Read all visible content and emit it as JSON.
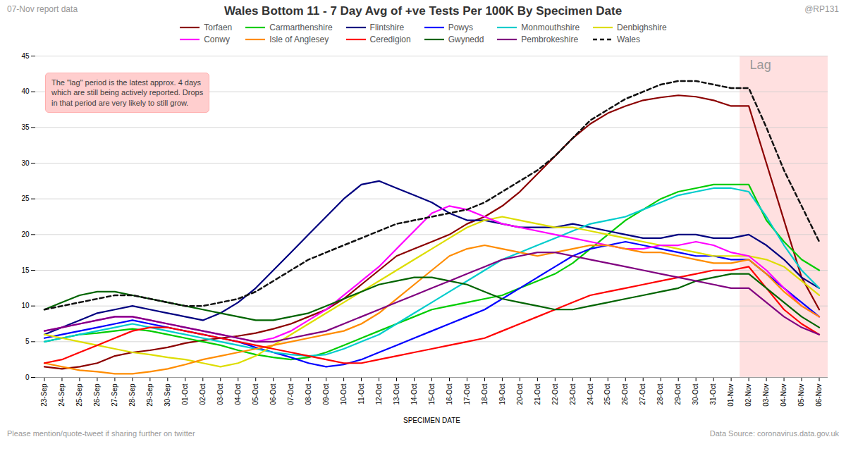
{
  "chart_data": {
    "type": "line",
    "title": "Wales Bottom 11 - 7 Day Avg of +ve Tests Per 100K By Specimen Date",
    "subtitle": "07-Nov report data",
    "credit": "@RP131",
    "caption": [
      "Please mention/quote-tweet if sharing further on twitter",
      "Data Source: coronavirus.data.gov.uk"
    ],
    "xlabel": "SPECIMEN DATE",
    "ylim": [
      0,
      45
    ],
    "yticks": [
      0,
      5,
      10,
      15,
      20,
      25,
      30,
      35,
      40,
      45
    ],
    "grid": true,
    "legend": "top",
    "highlight": {
      "from": "02-Nov",
      "to": "06-Nov",
      "label": "Lag"
    },
    "annotations": [
      "The \"lag\" period is the latest approx. 4 days\nwhich are still being actively reported. Drops\nin that period are very likely to still grow."
    ],
    "categories": [
      "23-Sep",
      "24-Sep",
      "25-Sep",
      "26-Sep",
      "27-Sep",
      "28-Sep",
      "29-Sep",
      "30-Sep",
      "01-Oct",
      "02-Oct",
      "03-Oct",
      "04-Oct",
      "05-Oct",
      "06-Oct",
      "07-Oct",
      "08-Oct",
      "09-Oct",
      "10-Oct",
      "11-Oct",
      "12-Oct",
      "13-Oct",
      "14-Oct",
      "15-Oct",
      "16-Oct",
      "17-Oct",
      "18-Oct",
      "19-Oct",
      "20-Oct",
      "21-Oct",
      "22-Oct",
      "23-Oct",
      "24-Oct",
      "25-Oct",
      "26-Oct",
      "27-Oct",
      "28-Oct",
      "29-Oct",
      "30-Oct",
      "31-Oct",
      "01-Nov",
      "02-Nov",
      "03-Nov",
      "04-Nov",
      "05-Nov",
      "06-Nov"
    ],
    "series": [
      {
        "name": "Torfaen",
        "color": "#8B0000",
        "line_style": "solid",
        "values": [
          1.5,
          1.2,
          1.5,
          2.0,
          3.0,
          3.5,
          3.8,
          4.2,
          4.8,
          5.2,
          5.5,
          5.8,
          6.2,
          6.8,
          7.5,
          8.5,
          9.5,
          11.0,
          13.0,
          15.0,
          17.0,
          18.0,
          19.0,
          20.0,
          21.5,
          22.5,
          24.0,
          26.0,
          28.5,
          31.0,
          33.5,
          35.5,
          37.0,
          38.0,
          38.8,
          39.2,
          39.5,
          39.3,
          38.8,
          38.0,
          38.0,
          30.0,
          22.0,
          14.0,
          9.5
        ]
      },
      {
        "name": "Carmarthenshire",
        "color": "#00CC00",
        "line_style": "solid",
        "values": [
          5.0,
          5.5,
          6.0,
          6.2,
          6.5,
          6.8,
          6.5,
          6.0,
          5.5,
          5.0,
          4.5,
          3.8,
          3.2,
          2.8,
          2.5,
          2.8,
          3.5,
          4.5,
          5.5,
          6.5,
          7.5,
          8.5,
          9.5,
          10.0,
          10.5,
          11.0,
          11.5,
          12.5,
          13.5,
          14.5,
          16.0,
          18.0,
          20.0,
          22.0,
          23.5,
          25.0,
          26.0,
          26.5,
          27.0,
          27.0,
          27.0,
          22.0,
          19.0,
          16.5,
          15.0
        ]
      },
      {
        "name": "Flintshire",
        "color": "#000080",
        "line_style": "solid",
        "values": [
          6.0,
          7.0,
          8.0,
          9.0,
          9.5,
          10.0,
          9.5,
          9.0,
          8.5,
          8.0,
          9.0,
          10.5,
          12.5,
          15.0,
          17.5,
          20.0,
          22.5,
          25.0,
          27.0,
          27.5,
          26.5,
          25.5,
          24.5,
          23.0,
          22.0,
          22.0,
          21.5,
          21.0,
          21.0,
          21.0,
          21.5,
          21.0,
          20.5,
          20.0,
          19.5,
          19.5,
          20.0,
          20.0,
          19.5,
          19.5,
          20.0,
          18.5,
          16.5,
          14.0,
          12.5
        ]
      },
      {
        "name": "Powys",
        "color": "#0000FF",
        "line_style": "solid",
        "values": [
          5.5,
          6.0,
          6.5,
          7.0,
          7.5,
          8.0,
          7.5,
          7.0,
          6.5,
          6.0,
          5.5,
          5.0,
          4.2,
          3.5,
          2.8,
          2.0,
          1.5,
          1.8,
          2.5,
          3.5,
          4.5,
          5.5,
          6.5,
          7.5,
          8.5,
          9.5,
          11.0,
          12.5,
          14.0,
          15.5,
          17.0,
          18.0,
          18.5,
          19.0,
          18.5,
          18.0,
          17.5,
          17.0,
          17.0,
          16.5,
          16.5,
          14.5,
          12.5,
          10.5,
          8.5
        ]
      },
      {
        "name": "Monmouthshire",
        "color": "#00CCCC",
        "line_style": "solid",
        "values": [
          5.0,
          5.5,
          6.0,
          6.5,
          7.0,
          7.5,
          7.0,
          6.5,
          6.0,
          5.5,
          5.0,
          4.5,
          4.0,
          3.5,
          3.2,
          3.0,
          3.2,
          4.0,
          5.0,
          6.0,
          7.5,
          9.0,
          10.5,
          12.0,
          13.5,
          15.0,
          16.5,
          17.5,
          18.5,
          19.5,
          20.5,
          21.5,
          22.0,
          22.5,
          23.5,
          24.5,
          25.5,
          26.0,
          26.5,
          26.5,
          26.0,
          22.5,
          18.5,
          15.0,
          12.5
        ]
      },
      {
        "name": "Denbighshire",
        "color": "#DDDD00",
        "line_style": "solid",
        "values": [
          6.0,
          5.5,
          5.0,
          4.5,
          4.0,
          3.5,
          3.2,
          2.8,
          2.5,
          2.0,
          1.5,
          2.0,
          3.0,
          4.5,
          6.0,
          7.5,
          9.0,
          10.5,
          12.0,
          13.5,
          15.0,
          16.5,
          18.0,
          19.5,
          21.0,
          22.0,
          22.5,
          22.0,
          21.5,
          21.0,
          21.0,
          20.5,
          20.0,
          19.5,
          19.0,
          18.5,
          18.0,
          17.5,
          17.0,
          17.0,
          17.0,
          16.5,
          15.5,
          13.5,
          11.5
        ]
      },
      {
        "name": "Conwy",
        "color": "#FF00FF",
        "line_style": "solid",
        "values": [
          6.5,
          7.0,
          7.5,
          8.0,
          8.5,
          8.5,
          8.0,
          7.5,
          7.0,
          6.5,
          6.0,
          5.5,
          5.0,
          5.5,
          6.5,
          8.0,
          9.5,
          11.5,
          13.5,
          15.5,
          18.0,
          20.5,
          23.0,
          24.0,
          23.5,
          22.5,
          21.5,
          21.0,
          20.5,
          20.0,
          19.5,
          19.0,
          18.5,
          18.0,
          18.0,
          18.5,
          18.5,
          19.0,
          18.5,
          17.5,
          17.0,
          15.0,
          12.5,
          10.0,
          8.5
        ]
      },
      {
        "name": "Isle of Anglesey",
        "color": "#FF8C00",
        "line_style": "solid",
        "values": [
          2.0,
          1.5,
          1.0,
          0.8,
          0.5,
          0.5,
          0.8,
          1.2,
          1.8,
          2.5,
          3.0,
          3.5,
          4.0,
          4.5,
          5.0,
          5.5,
          6.0,
          6.5,
          7.5,
          9.0,
          11.0,
          13.0,
          15.0,
          17.0,
          18.0,
          18.5,
          18.0,
          17.5,
          17.0,
          17.5,
          18.0,
          18.5,
          18.5,
          18.0,
          17.5,
          17.5,
          17.0,
          16.5,
          16.0,
          16.0,
          16.5,
          14.5,
          12.0,
          10.0,
          8.5
        ]
      },
      {
        "name": "Ceredigion",
        "color": "#FF0000",
        "line_style": "solid",
        "values": [
          2.0,
          2.5,
          3.5,
          4.5,
          5.5,
          6.5,
          7.0,
          7.0,
          6.5,
          6.0,
          5.5,
          5.0,
          4.5,
          4.0,
          3.5,
          3.0,
          2.5,
          2.0,
          2.0,
          2.5,
          3.0,
          3.5,
          4.0,
          4.5,
          5.0,
          5.5,
          6.5,
          7.5,
          8.5,
          9.5,
          10.5,
          11.5,
          12.0,
          12.5,
          13.0,
          13.5,
          14.0,
          14.5,
          15.0,
          15.0,
          15.5,
          12.5,
          9.5,
          7.5,
          6.0
        ]
      },
      {
        "name": "Gwynedd",
        "color": "#006400",
        "line_style": "solid",
        "values": [
          9.5,
          10.5,
          11.5,
          12.0,
          12.0,
          11.5,
          11.0,
          10.5,
          10.0,
          9.5,
          9.0,
          8.5,
          8.0,
          8.0,
          8.5,
          9.0,
          10.0,
          11.0,
          12.0,
          13.0,
          13.5,
          14.0,
          14.0,
          13.5,
          13.0,
          12.0,
          11.0,
          10.5,
          10.0,
          9.5,
          9.5,
          10.0,
          10.5,
          11.0,
          11.5,
          12.0,
          12.5,
          13.5,
          14.0,
          14.5,
          14.5,
          12.5,
          10.5,
          8.5,
          7.0
        ]
      },
      {
        "name": "Pembrokeshire",
        "color": "#800080",
        "line_style": "solid",
        "values": [
          6.5,
          7.0,
          7.5,
          8.0,
          8.5,
          8.5,
          8.0,
          7.5,
          7.0,
          6.5,
          6.0,
          5.5,
          5.0,
          5.0,
          5.5,
          6.0,
          6.5,
          7.5,
          8.5,
          9.5,
          10.5,
          11.5,
          12.5,
          13.5,
          14.5,
          15.5,
          16.5,
          17.0,
          17.5,
          17.5,
          17.0,
          16.5,
          16.0,
          15.5,
          15.0,
          14.5,
          14.0,
          13.5,
          13.0,
          12.5,
          12.5,
          10.5,
          8.5,
          7.0,
          6.0
        ]
      },
      {
        "name": "Wales",
        "color": "#111111",
        "line_style": "dashed",
        "values": [
          9.5,
          10.0,
          10.5,
          11.0,
          11.5,
          11.5,
          11.0,
          10.5,
          10.0,
          10.0,
          10.5,
          11.0,
          12.0,
          13.5,
          15.0,
          16.5,
          17.5,
          18.5,
          19.5,
          20.5,
          21.5,
          22.0,
          22.5,
          23.0,
          23.5,
          24.5,
          26.0,
          27.5,
          29.0,
          31.0,
          33.5,
          36.0,
          37.5,
          39.0,
          40.0,
          41.0,
          41.5,
          41.5,
          41.0,
          40.5,
          40.5,
          35.0,
          29.0,
          24.0,
          19.0
        ]
      }
    ]
  }
}
